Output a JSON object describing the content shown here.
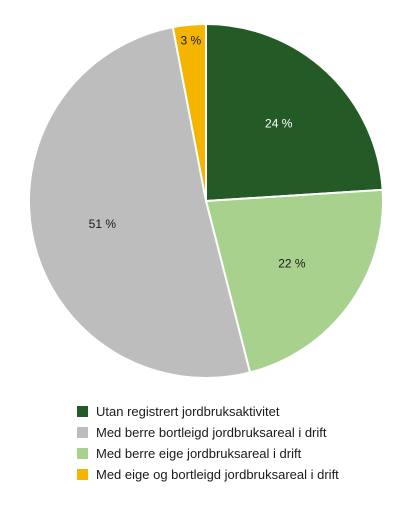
{
  "chart_data": {
    "type": "pie",
    "title": "",
    "categories": [
      "Utan registrert jordbruksaktivitet",
      "Med berre bortleigd jordbruksareal i drift",
      "Med berre eige jordbruksareal i drift",
      "Med eige og bortleigd jordbruksareal i drift"
    ],
    "values": [
      24,
      51,
      22,
      3
    ],
    "slice_order_clockwise_from_top": [
      0,
      2,
      1,
      3
    ],
    "data_labels": [
      "24 %",
      "51 %",
      "22 %",
      "3 %"
    ],
    "unit": "%",
    "legend_position": "bottom",
    "colors": [
      "#245a26",
      "#bdbdbd",
      "#a9d18e",
      "#f5b400"
    ],
    "label_colors": [
      "#ffffff",
      "#1a1a1a",
      "#1a1a1a",
      "#1a1a1a"
    ]
  }
}
